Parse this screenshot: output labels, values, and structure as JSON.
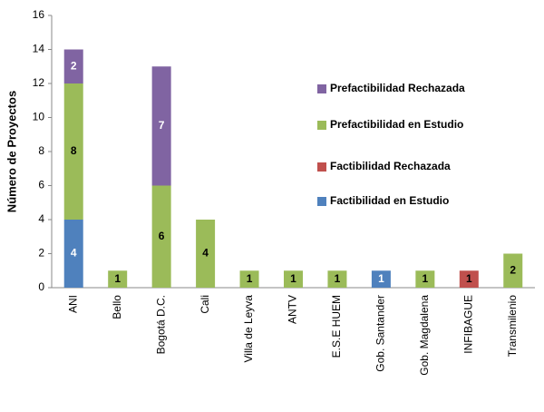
{
  "chart_data": {
    "type": "stacked_bar",
    "y_label": "Número de Proyectos",
    "categories": [
      "ANI",
      "Bello",
      "Bogotá D.C.",
      "Cali",
      "Villa de Leyva",
      "ANTV",
      "E.S.E HUEM",
      "Gob. Santander",
      "Gob. Magdalena",
      "INFIBAGUE",
      "Transmilenio"
    ],
    "series": [
      {
        "name": "Factibilidad en Estudio",
        "color": "#4f81bd",
        "values": [
          4,
          null,
          null,
          null,
          null,
          null,
          null,
          1,
          null,
          null,
          null
        ]
      },
      {
        "name": "Factibilidad Rechazada",
        "color": "#c0504d",
        "values": [
          null,
          null,
          null,
          null,
          null,
          null,
          null,
          null,
          null,
          1,
          null
        ]
      },
      {
        "name": "Prefactibilidad en Estudio",
        "color": "#9bbb59",
        "values": [
          8,
          1,
          6,
          4,
          1,
          1,
          1,
          null,
          1,
          null,
          2
        ]
      },
      {
        "name": "Prefactibilidad Rechazada",
        "color": "#8064a2",
        "values": [
          2,
          null,
          7,
          null,
          null,
          null,
          null,
          null,
          null,
          null,
          null
        ]
      }
    ],
    "ylim": [
      0,
      16
    ],
    "yticks": [
      0,
      2,
      4,
      6,
      8,
      10,
      12,
      14,
      16
    ]
  }
}
